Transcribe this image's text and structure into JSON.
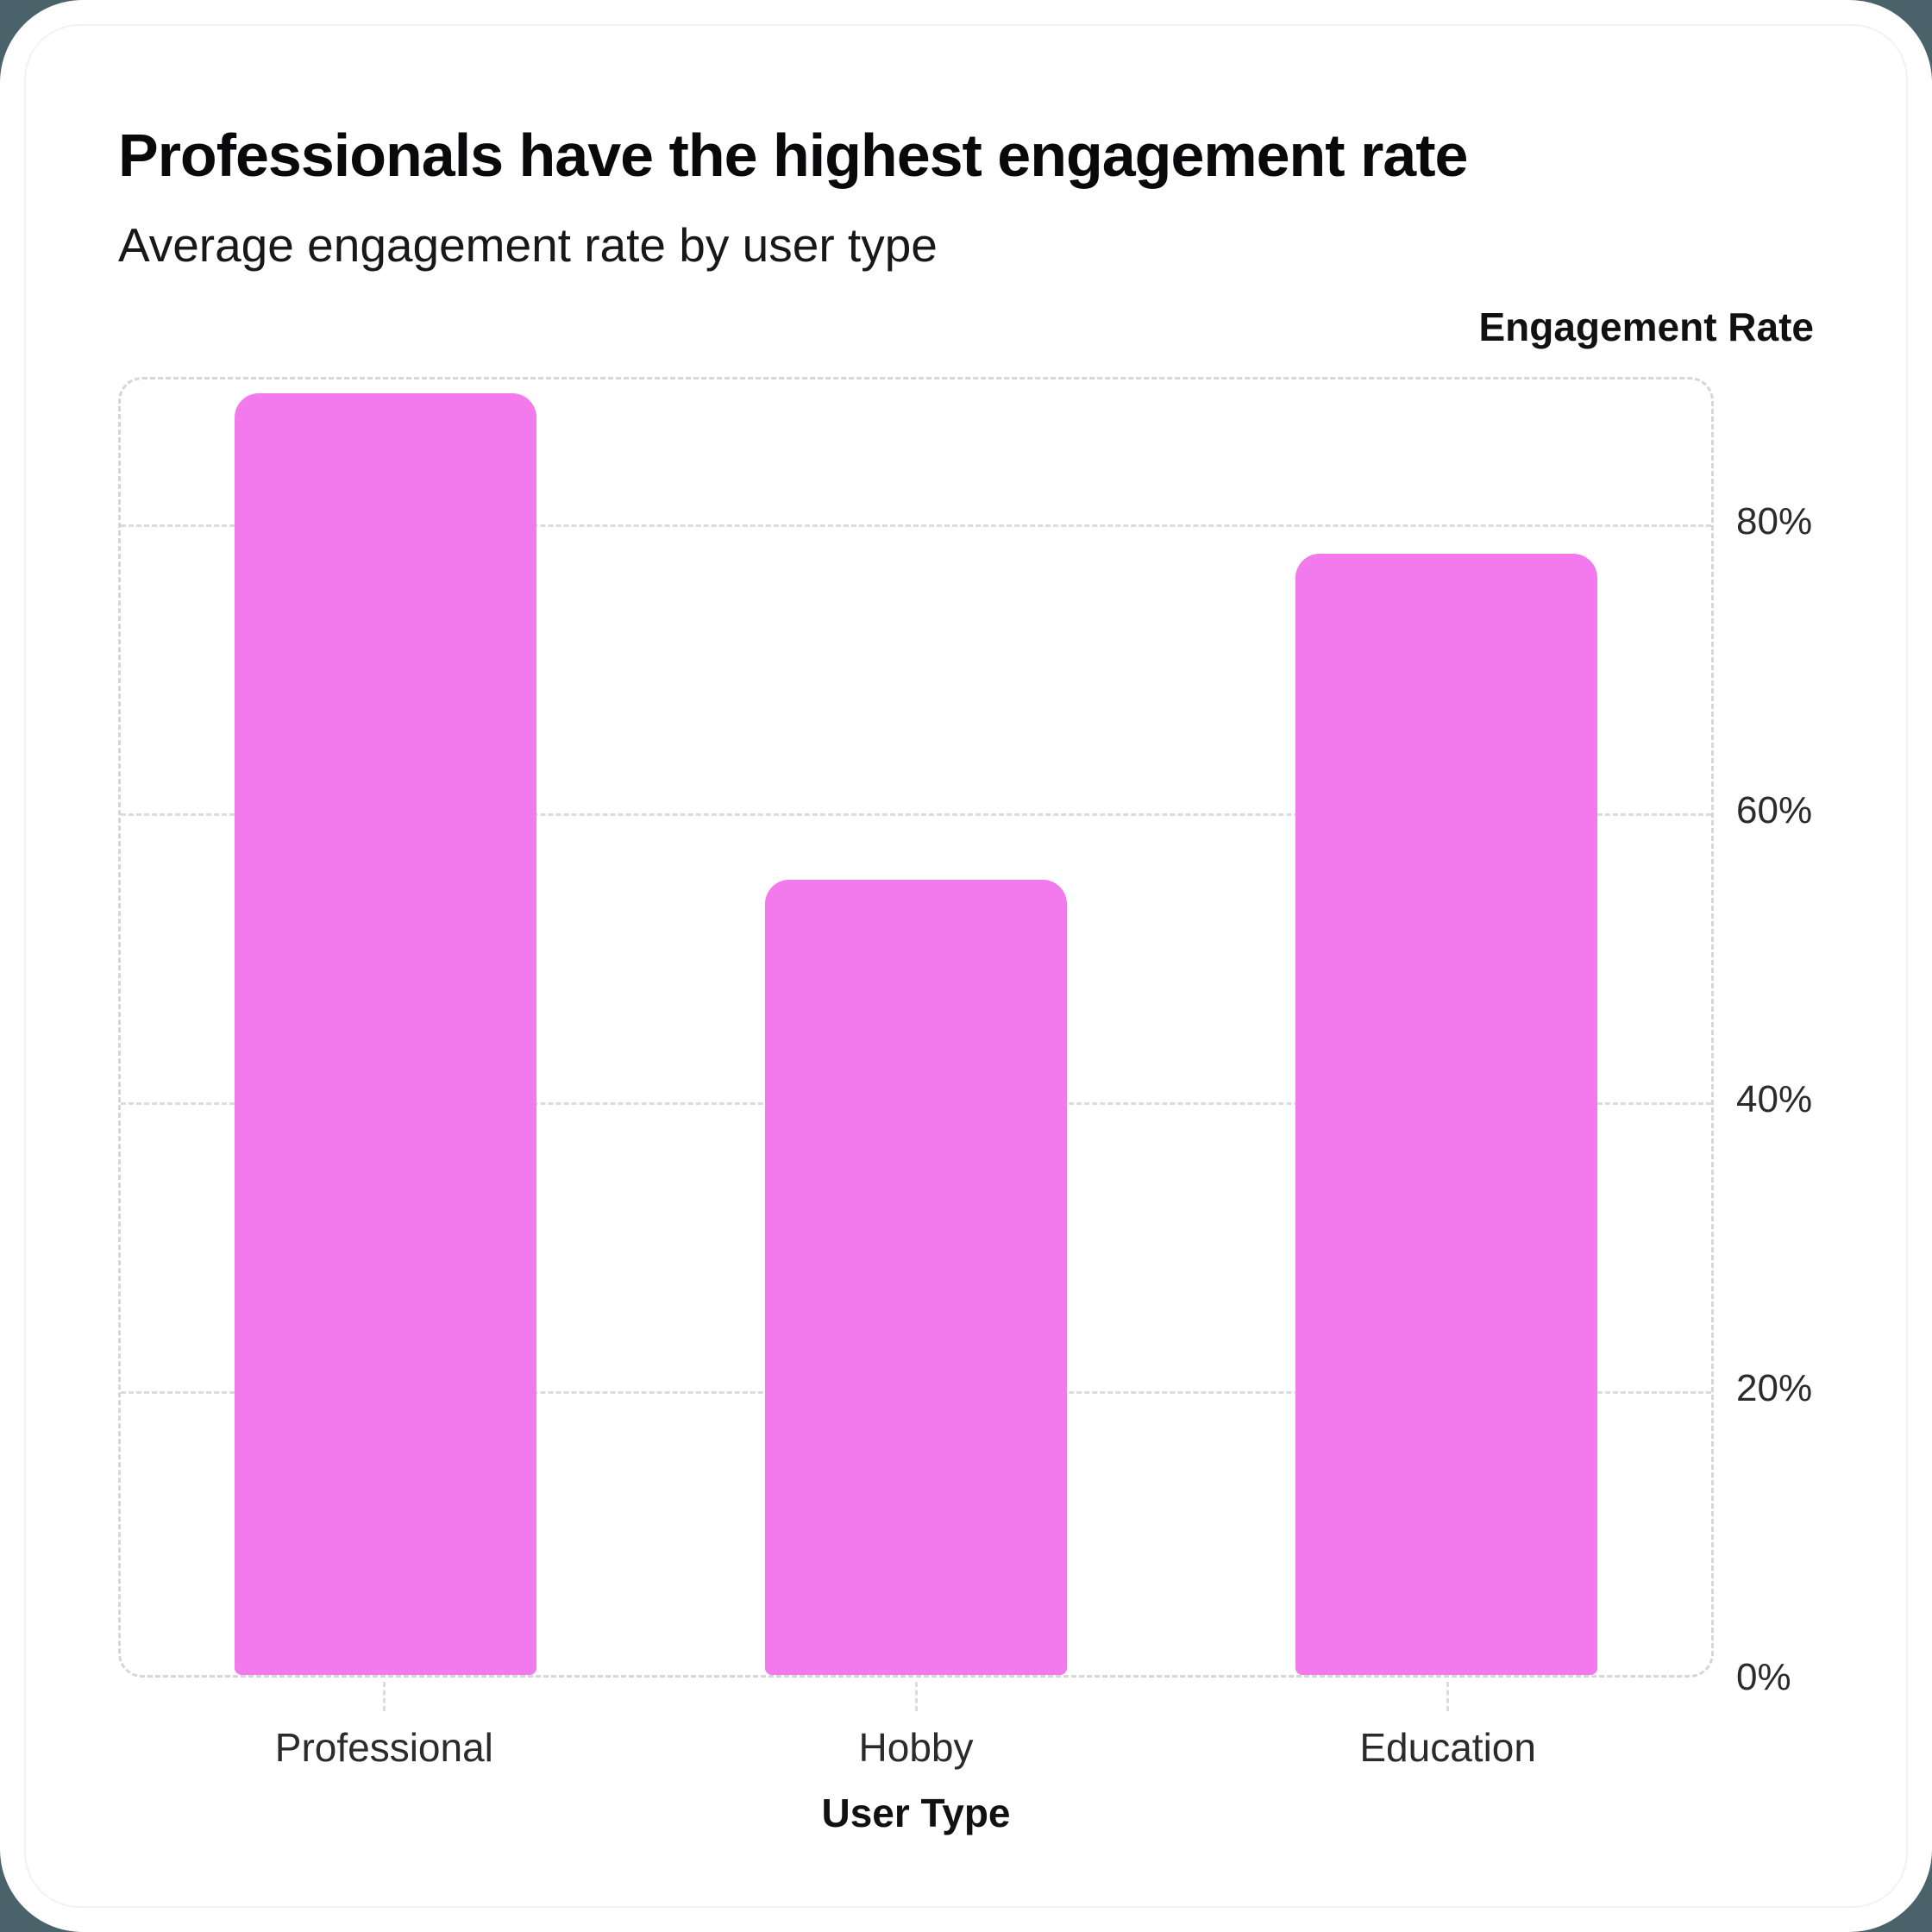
{
  "page": {
    "background_color": "#4a636b",
    "card_color": "#ffffff"
  },
  "header": {
    "title": "Professionals have the highest engagement rate",
    "subtitle": "Average engagement rate by user type"
  },
  "chart_data": {
    "type": "bar",
    "title": "Professionals have the highest engagement rate",
    "subtitle": "Average engagement rate by user type",
    "categories": [
      "Professional",
      "Hobby",
      "Education"
    ],
    "values": [
      88.7,
      55.0,
      77.6
    ],
    "unit": "%",
    "xlabel": "User Type",
    "ylabel": "Engagement Rate",
    "ylim": [
      0,
      90
    ],
    "yticks": [
      0,
      20,
      40,
      60,
      80
    ],
    "ytick_labels": [
      "0%",
      "20%",
      "40%",
      "60%",
      "80%"
    ],
    "legend": "none",
    "grid": "horizontal-dashed",
    "bar_color": "#f27aec",
    "plot_border": "dashed-rounded"
  }
}
